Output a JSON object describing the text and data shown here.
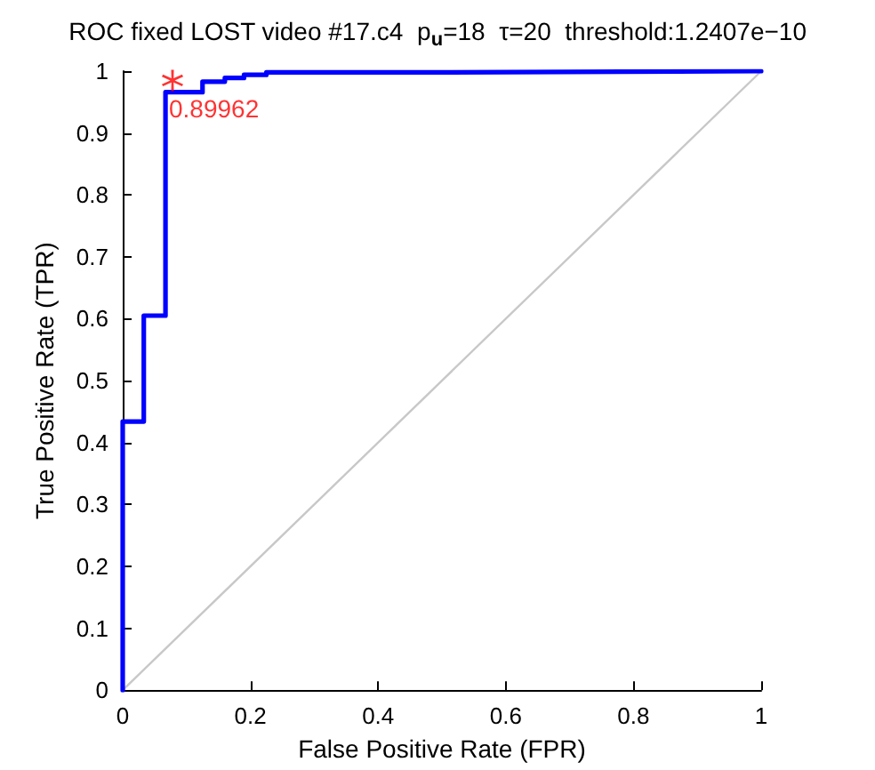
{
  "chart_data": {
    "type": "line",
    "title": "ROC fixed LOST video #17.c4  p$_{u}$=18  τ=20  threshold:1.2407e−10",
    "xlabel": "False Positive Rate (FPR)",
    "ylabel": "True Positive Rate (TPR)",
    "xlim": [
      0,
      1
    ],
    "ylim": [
      0,
      1
    ],
    "xticks": [
      0,
      0.2,
      0.4,
      0.6,
      0.8,
      1
    ],
    "yticks": [
      0,
      0.1,
      0.2,
      0.3,
      0.4,
      0.5,
      0.6,
      0.7,
      0.8,
      0.9,
      1
    ],
    "grid": false,
    "marker": "none",
    "line_style": "solid",
    "series": [
      {
        "color": "#c8c8c8",
        "x": [
          0,
          1
        ],
        "values": [
          0,
          1
        ]
      },
      {
        "color": "#0000ff",
        "x": [
          0,
          0,
          0.033,
          0.033,
          0.067,
          0.067,
          0.125,
          0.125,
          0.16,
          0.16,
          0.19,
          0.19,
          0.225,
          0.225,
          0.5,
          0.5,
          1
        ],
        "values": [
          0,
          0.434,
          0.434,
          0.605,
          0.605,
          0.966,
          0.966,
          0.983,
          0.983,
          0.989,
          0.989,
          0.994,
          0.994,
          0.998,
          0.998,
          1,
          1
        ]
      },
      {
        "type": "scatter",
        "marker": "star",
        "color": "#ff0000",
        "x": [
          0.078
        ],
        "values": [
          0.985
        ]
      }
    ],
    "annotations": [
      {
        "text": "0.89962",
        "x": 0.078,
        "y": 0.985
      }
    ]
  }
}
